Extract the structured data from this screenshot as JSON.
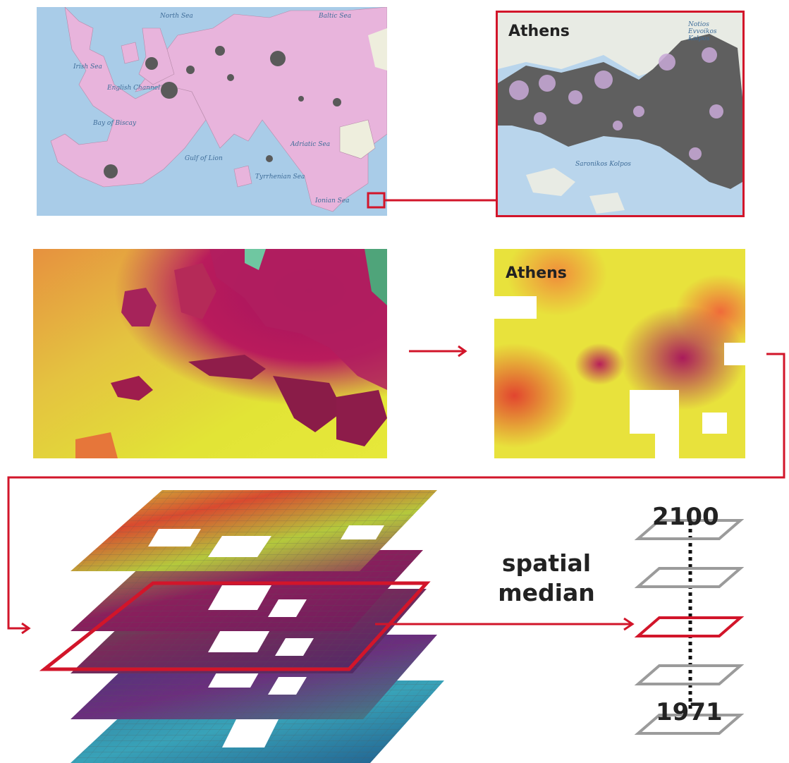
{
  "overview_map": {
    "sea_labels": [
      "North Sea",
      "Baltic Sea",
      "Irish Sea",
      "English Channel",
      "Bay of Biscay",
      "Gulf of Lion",
      "Tyrrhenian Sea",
      "Adriatic Sea",
      "Ionian Sea"
    ]
  },
  "athens_zoom": {
    "title": "Athens",
    "place_labels": [
      "Saronikos Kolpos",
      "Notios Evvoikos Kolpos"
    ]
  },
  "athens_heat": {
    "title": "Athens"
  },
  "aggregation": {
    "line1": "spatial",
    "line2": "median"
  },
  "timeline": {
    "end_year": "2100",
    "start_year": "1971"
  },
  "colors": {
    "accent": "#d2152a",
    "outline": "#9b9b9b",
    "land": "#e8b4dc",
    "water": "#a9cce8",
    "urban": "#5a5a5a"
  },
  "icons": [
    "arrow-right-icon",
    "layer-stack-icon",
    "year-slice-icon"
  ]
}
